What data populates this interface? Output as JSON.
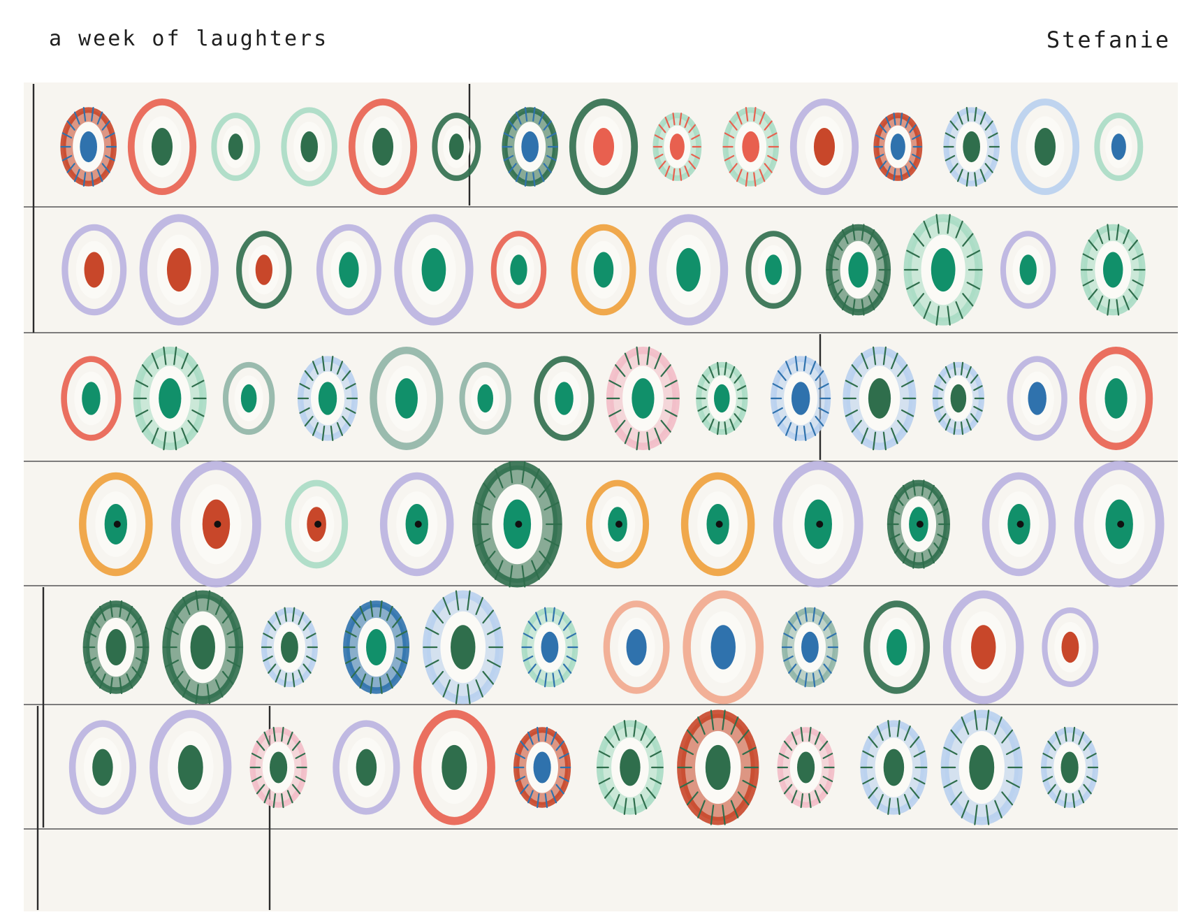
{
  "title": "a week of laughters",
  "author": "Stefanie",
  "artwork": {
    "description_label": "",
    "palette": {
      "paper": "#f7f5f0",
      "line": "#2b2b2b",
      "red": "#e8604f",
      "rust": "#c8472a",
      "dark_green": "#2f6e4c",
      "green": "#11906a",
      "mint": "#a8dcc4",
      "lavender": "#b9b3e0",
      "sky": "#b8d0ee",
      "sage": "#8fb5a6",
      "orange": "#eea03a",
      "pink": "#f2bcc6",
      "blue": "#2f72ad",
      "peach": "#f1a88d"
    },
    "rows": [
      {
        "eyes": [
          [
            "rust",
            "blue",
            1
          ],
          [
            "red",
            "dark_green",
            0
          ],
          [
            "mint",
            "dark_green",
            0
          ],
          [
            "mint",
            "dark_green",
            0
          ],
          [
            "red",
            "dark_green",
            0
          ],
          [
            "dark_green",
            "dark_green",
            0
          ],
          [
            "dark_green",
            "blue",
            1
          ],
          [
            "dark_green",
            "red",
            0
          ],
          [
            "mint",
            "red",
            1
          ],
          [
            "mint",
            "red",
            1
          ],
          [
            "lavender",
            "rust",
            0
          ],
          [
            "rust",
            "blue",
            1
          ],
          [
            "sky",
            "dark_green",
            1
          ],
          [
            "sky",
            "dark_green",
            0
          ],
          [
            "mint",
            "blue",
            0
          ]
        ]
      },
      {
        "eyes": [
          [
            "lavender",
            "rust",
            0
          ],
          [
            "lavender",
            "rust",
            0
          ],
          [
            "dark_green",
            "rust",
            0
          ],
          [
            "lavender",
            "green",
            0
          ],
          [
            "lavender",
            "green",
            0
          ],
          [
            "red",
            "green",
            0
          ],
          [
            "orange",
            "green",
            0
          ],
          [
            "lavender",
            "green",
            0
          ],
          [
            "dark_green",
            "green",
            0
          ],
          [
            "dark_green",
            "green",
            1
          ],
          [
            "mint",
            "green",
            1
          ],
          [
            "lavender",
            "green",
            0
          ],
          [
            "mint",
            "green",
            1
          ]
        ]
      },
      {
        "eyes": [
          [
            "red",
            "green",
            0
          ],
          [
            "mint",
            "green",
            1
          ],
          [
            "sage",
            "green",
            0
          ],
          [
            "sky",
            "green",
            1
          ],
          [
            "sage",
            "green",
            0
          ],
          [
            "sage",
            "green",
            0
          ],
          [
            "dark_green",
            "green",
            0
          ],
          [
            "pink",
            "green",
            1
          ],
          [
            "mint",
            "green",
            1
          ],
          [
            "sky",
            "blue",
            1
          ],
          [
            "sky",
            "dark_green",
            1
          ],
          [
            "sky",
            "dark_green",
            1
          ],
          [
            "lavender",
            "blue",
            0
          ],
          [
            "red",
            "green",
            0
          ]
        ]
      },
      {
        "eyes": [
          [
            "orange",
            "green",
            0
          ],
          [
            "lavender",
            "rust",
            0
          ],
          [
            "mint",
            "rust",
            0
          ],
          [
            "lavender",
            "green",
            0
          ],
          [
            "dark_green",
            "green",
            1
          ],
          [
            "orange",
            "green",
            0
          ],
          [
            "orange",
            "green",
            0
          ],
          [
            "lavender",
            "green",
            0
          ],
          [
            "dark_green",
            "green",
            1
          ],
          [
            "lavender",
            "green",
            0
          ],
          [
            "lavender",
            "green",
            0
          ]
        ]
      },
      {
        "eyes": [
          [
            "dark_green",
            "dark_green",
            1
          ],
          [
            "dark_green",
            "dark_green",
            1
          ],
          [
            "sky",
            "dark_green",
            1
          ],
          [
            "blue",
            "green",
            1
          ],
          [
            "sky",
            "dark_green",
            1
          ],
          [
            "mint",
            "blue",
            1
          ],
          [
            "peach",
            "blue",
            0
          ],
          [
            "peach",
            "blue",
            0
          ],
          [
            "sage",
            "blue",
            1
          ],
          [
            "dark_green",
            "green",
            0
          ],
          [
            "lavender",
            "rust",
            0
          ],
          [
            "lavender",
            "rust",
            0
          ]
        ]
      },
      {
        "eyes": [
          [
            "lavender",
            "dark_green",
            0
          ],
          [
            "lavender",
            "dark_green",
            0
          ],
          [
            "pink",
            "dark_green",
            1
          ],
          [
            "lavender",
            "dark_green",
            0
          ],
          [
            "red",
            "dark_green",
            0
          ],
          [
            "rust",
            "blue",
            1
          ],
          [
            "mint",
            "dark_green",
            1
          ],
          [
            "rust",
            "dark_green",
            1
          ],
          [
            "pink",
            "dark_green",
            1
          ],
          [
            "sky",
            "dark_green",
            1
          ],
          [
            "sky",
            "dark_green",
            1
          ],
          [
            "sky",
            "dark_green",
            1
          ]
        ]
      }
    ]
  }
}
